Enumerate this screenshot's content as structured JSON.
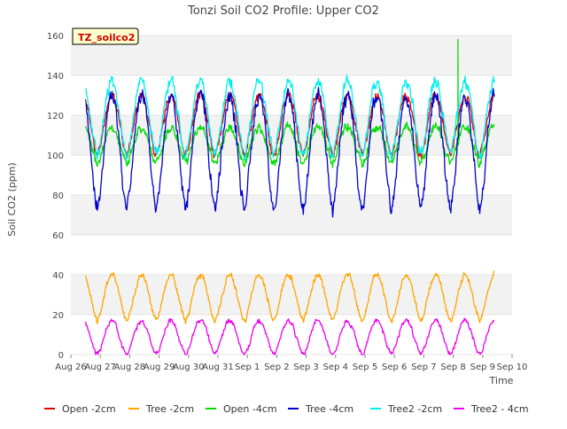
{
  "chart_data": {
    "type": "line",
    "title": "Tonzi Soil CO2 Profile: Upper CO2",
    "site_label": "TZ_soilco2",
    "xlabel": "Time",
    "ylabel": "Soil CO2 (ppm)",
    "ylim": [
      0,
      160
    ],
    "yticks": [
      0,
      20,
      40,
      60,
      80,
      100,
      120,
      140,
      160
    ],
    "xlim": [
      0,
      15
    ],
    "xticks": [
      {
        "x": 0,
        "label": "Aug 26"
      },
      {
        "x": 1,
        "label": "Aug 27"
      },
      {
        "x": 2,
        "label": "Aug 28"
      },
      {
        "x": 3,
        "label": "Aug 29"
      },
      {
        "x": 4,
        "label": "Aug 30"
      },
      {
        "x": 5,
        "label": "Aug 31"
      },
      {
        "x": 6,
        "label": "Sep 1"
      },
      {
        "x": 7,
        "label": "Sep 2"
      },
      {
        "x": 8,
        "label": "Sep 3"
      },
      {
        "x": 9,
        "label": "Sep 4"
      },
      {
        "x": 10,
        "label": "Sep 5"
      },
      {
        "x": 11,
        "label": "Sep 6"
      },
      {
        "x": 12,
        "label": "Sep 7"
      },
      {
        "x": 13,
        "label": "Sep 8"
      },
      {
        "x": 14,
        "label": "Sep 9"
      },
      {
        "x": 15,
        "label": "Sep 10"
      }
    ],
    "grid": true,
    "legend_position": "bottom",
    "x_start": 0.5,
    "x_end": 14.4,
    "series": [
      {
        "name": "Open -2cm",
        "color": "#dd0000",
        "base": 100,
        "amp": 30,
        "noise": 3,
        "seed": 11
      },
      {
        "name": "Tree -2cm",
        "color": "#ffa500",
        "base": 17,
        "amp": 23,
        "noise": 2,
        "seed": 23
      },
      {
        "name": "Open -4cm",
        "color": "#00dd00",
        "base": 96,
        "amp": 18,
        "noise": 3,
        "seed": 37,
        "spike": {
          "x": 13.15,
          "y": 158
        }
      },
      {
        "name": "Tree -4cm",
        "color": "#0000cc",
        "base": 73,
        "amp": 57,
        "noise": 5,
        "seed": 41
      },
      {
        "name": "Tree2 -2cm",
        "color": "#00eeee",
        "base": 100,
        "amp": 37,
        "noise": 4,
        "seed": 53
      },
      {
        "name": "Tree2 - 4cm",
        "color": "#ee00ee",
        "base": 0,
        "amp": 17,
        "noise": 1.5,
        "seed": 67
      }
    ]
  }
}
